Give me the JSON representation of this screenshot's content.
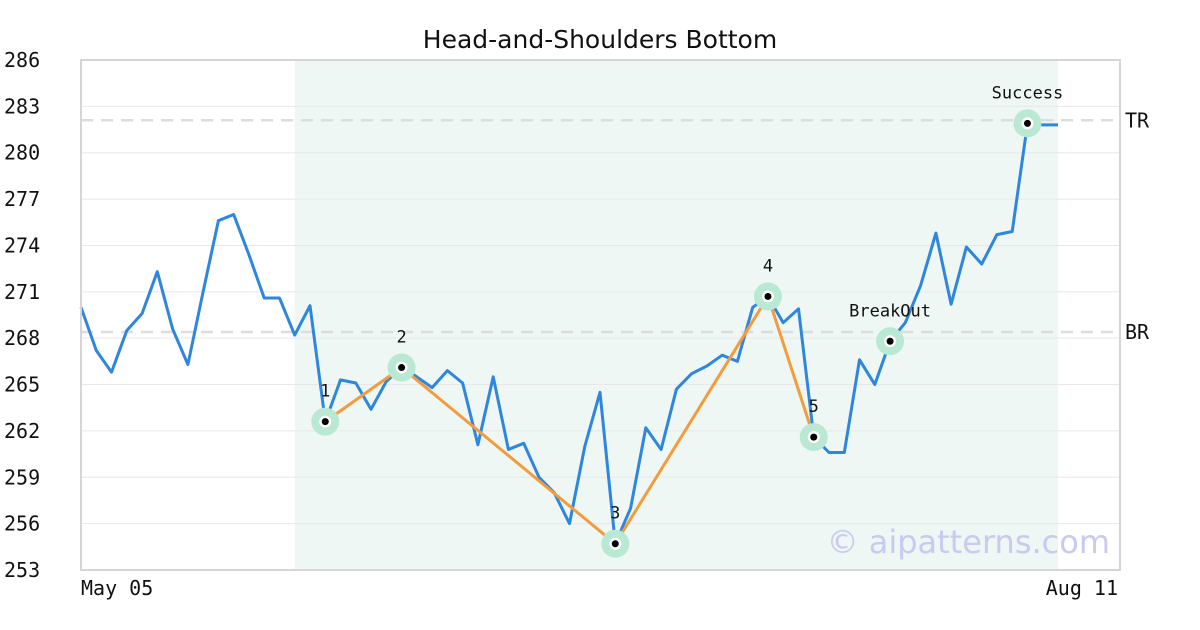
{
  "chart_data": {
    "type": "line",
    "title": "Head-and-Shoulders Bottom",
    "xlabel": "",
    "ylabel": "",
    "x_tick_labels": [
      "May 05",
      "Aug 11"
    ],
    "y_ticks": [
      253,
      256,
      259,
      262,
      265,
      268,
      271,
      274,
      277,
      280,
      283,
      286
    ],
    "ylim": [
      253,
      286
    ],
    "grid": "horizontal",
    "series": [
      {
        "values": [
          270.0,
          267.2,
          265.8,
          268.5,
          269.6,
          272.3,
          268.6,
          266.3,
          271.0,
          275.6,
          276.0,
          273.4,
          270.6,
          270.6,
          268.2,
          270.1,
          262.6,
          265.3,
          265.1,
          263.4,
          265.2,
          266.1,
          265.5,
          264.8,
          265.9,
          265.1,
          261.1,
          265.5,
          260.8,
          261.2,
          259.0,
          258.0,
          256.0,
          261.0,
          264.5,
          254.7,
          257.0,
          262.2,
          260.8,
          264.7,
          265.7,
          266.2,
          266.9,
          266.5,
          270.0,
          270.7,
          269.0,
          269.9,
          261.6,
          260.6,
          260.6,
          266.6,
          265.0,
          267.8,
          269.0,
          271.4,
          274.8,
          270.2,
          273.9,
          272.8,
          274.7,
          274.9,
          281.9,
          281.8,
          281.8
        ],
        "color": "#2e86de"
      }
    ],
    "pattern_points": [
      {
        "label": "1",
        "index": 16,
        "value": 262.6
      },
      {
        "label": "2",
        "index": 21,
        "value": 266.1
      },
      {
        "label": "3",
        "index": 35,
        "value": 254.7
      },
      {
        "label": "4",
        "index": 45,
        "value": 270.7
      },
      {
        "label": "5",
        "index": 48,
        "value": 261.6
      }
    ],
    "event_points": [
      {
        "label": "BreakOut",
        "index": 53,
        "value": 267.8
      },
      {
        "label": "Success",
        "index": 62,
        "value": 281.9
      }
    ],
    "levels": [
      {
        "label": "TR",
        "value": 282.1
      },
      {
        "label": "BR",
        "value": 268.4
      }
    ],
    "highlight_range": {
      "start_index": 14,
      "end_index": 64
    },
    "colors": {
      "price_line": "#2e86de",
      "pattern_line": "#f39c3d",
      "highlight": "#eef7f3",
      "marker_halo": "#b9e8d3",
      "level_line": "#dddddd"
    }
  },
  "watermark": "© aipatterns.com"
}
